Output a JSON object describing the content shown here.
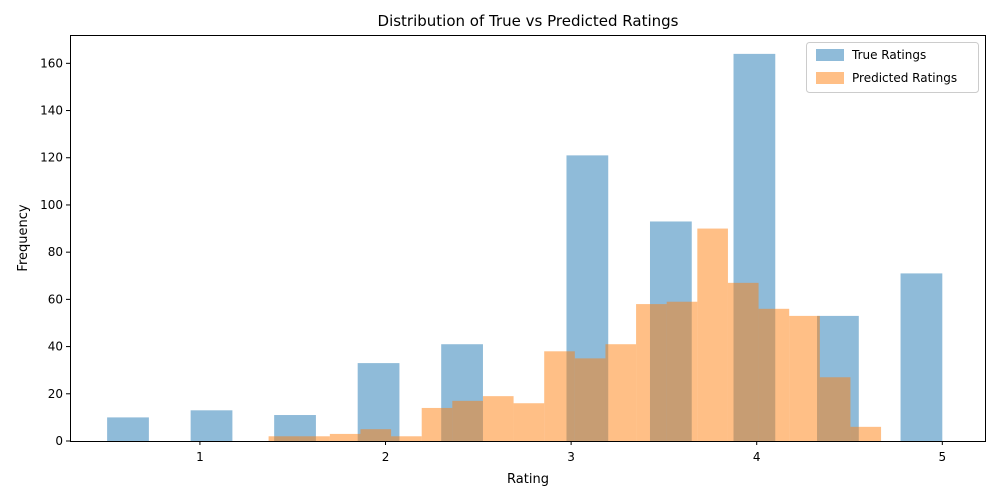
{
  "chart_data": {
    "type": "bar",
    "title": "Distribution of True vs Predicted Ratings",
    "xlabel": "Rating",
    "ylabel": "Frequency",
    "xlim": [
      0.3,
      5.23
    ],
    "ylim": [
      0,
      172
    ],
    "xticks": [
      1,
      2,
      3,
      4,
      5
    ],
    "yticks": [
      0,
      20,
      40,
      60,
      80,
      100,
      120,
      140,
      160
    ],
    "grid": false,
    "legend": "top-right",
    "series": [
      {
        "name": "True Ratings",
        "color": "#1f77b4",
        "opacity": 0.5,
        "bins": [
          {
            "start": 0.5,
            "end": 0.725,
            "value": 10
          },
          {
            "start": 0.95,
            "end": 1.175,
            "value": 13
          },
          {
            "start": 1.4,
            "end": 1.625,
            "value": 11
          },
          {
            "start": 1.85,
            "end": 2.075,
            "value": 33
          },
          {
            "start": 2.3,
            "end": 2.525,
            "value": 41
          },
          {
            "start": 2.975,
            "end": 3.2,
            "value": 121
          },
          {
            "start": 3.425,
            "end": 3.65,
            "value": 93
          },
          {
            "start": 3.875,
            "end": 4.1,
            "value": 164
          },
          {
            "start": 4.325,
            "end": 4.55,
            "value": 53
          },
          {
            "start": 4.775,
            "end": 5.0,
            "value": 71
          }
        ]
      },
      {
        "name": "Predicted Ratings",
        "color": "#ff7f0e",
        "opacity": 0.5,
        "bins": [
          {
            "start": 1.37,
            "end": 1.535,
            "value": 2
          },
          {
            "start": 1.535,
            "end": 1.7,
            "value": 2
          },
          {
            "start": 1.7,
            "end": 1.865,
            "value": 3
          },
          {
            "start": 1.865,
            "end": 2.03,
            "value": 5
          },
          {
            "start": 2.03,
            "end": 2.195,
            "value": 2
          },
          {
            "start": 2.195,
            "end": 2.36,
            "value": 14
          },
          {
            "start": 2.36,
            "end": 2.525,
            "value": 17
          },
          {
            "start": 2.525,
            "end": 2.69,
            "value": 19
          },
          {
            "start": 2.69,
            "end": 2.855,
            "value": 16
          },
          {
            "start": 2.855,
            "end": 3.02,
            "value": 38
          },
          {
            "start": 3.02,
            "end": 3.185,
            "value": 35
          },
          {
            "start": 3.185,
            "end": 3.35,
            "value": 41
          },
          {
            "start": 3.35,
            "end": 3.515,
            "value": 58
          },
          {
            "start": 3.515,
            "end": 3.68,
            "value": 59
          },
          {
            "start": 3.68,
            "end": 3.845,
            "value": 90
          },
          {
            "start": 3.845,
            "end": 4.01,
            "value": 67
          },
          {
            "start": 4.01,
            "end": 4.175,
            "value": 56
          },
          {
            "start": 4.175,
            "end": 4.34,
            "value": 53
          },
          {
            "start": 4.34,
            "end": 4.505,
            "value": 27
          },
          {
            "start": 4.505,
            "end": 4.67,
            "value": 6
          }
        ]
      }
    ]
  }
}
